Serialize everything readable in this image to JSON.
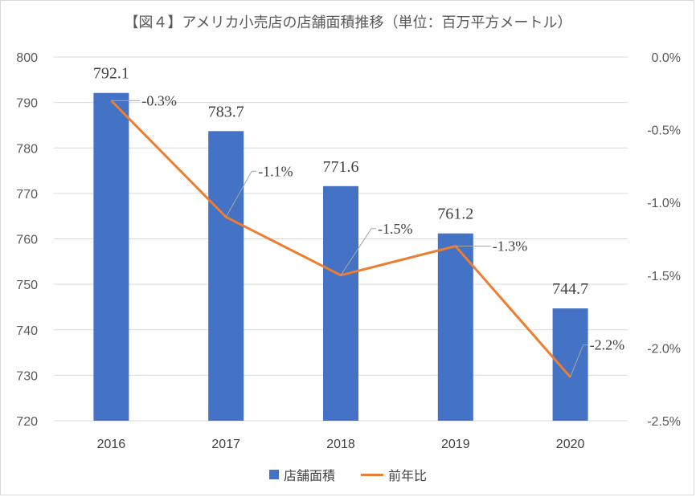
{
  "chart_data": {
    "type": "bar",
    "title": "【図４】アメリカ小売店の店舗面積推移（単位：百万平方メートル）",
    "categories": [
      "2016",
      "2017",
      "2018",
      "2019",
      "2020"
    ],
    "series": [
      {
        "name": "店舗面積",
        "type": "bar",
        "axis": "left",
        "values": [
          792.1,
          783.7,
          771.6,
          761.2,
          744.7
        ],
        "value_labels": [
          "792.1",
          "783.7",
          "771.6",
          "761.2",
          "744.7"
        ],
        "color": "#4472c4"
      },
      {
        "name": "前年比",
        "type": "line",
        "axis": "right",
        "values": [
          -0.3,
          -1.1,
          -1.5,
          -1.3,
          -2.2
        ],
        "value_labels": [
          "-0.3%",
          "-1.1%",
          "-1.5%",
          "-1.3%",
          "-2.2%"
        ],
        "color": "#ed7d31"
      }
    ],
    "ylim_left": [
      720,
      800
    ],
    "yticks_left": [
      "800",
      "790",
      "780",
      "770",
      "760",
      "750",
      "740",
      "730",
      "720"
    ],
    "ylim_right": [
      -2.5,
      0
    ],
    "yticks_right": [
      "0.0%",
      "-0.5%",
      "-1.0%",
      "-1.5%",
      "-2.0%",
      "-2.5%"
    ],
    "grid": true,
    "legend_position": "bottom"
  }
}
